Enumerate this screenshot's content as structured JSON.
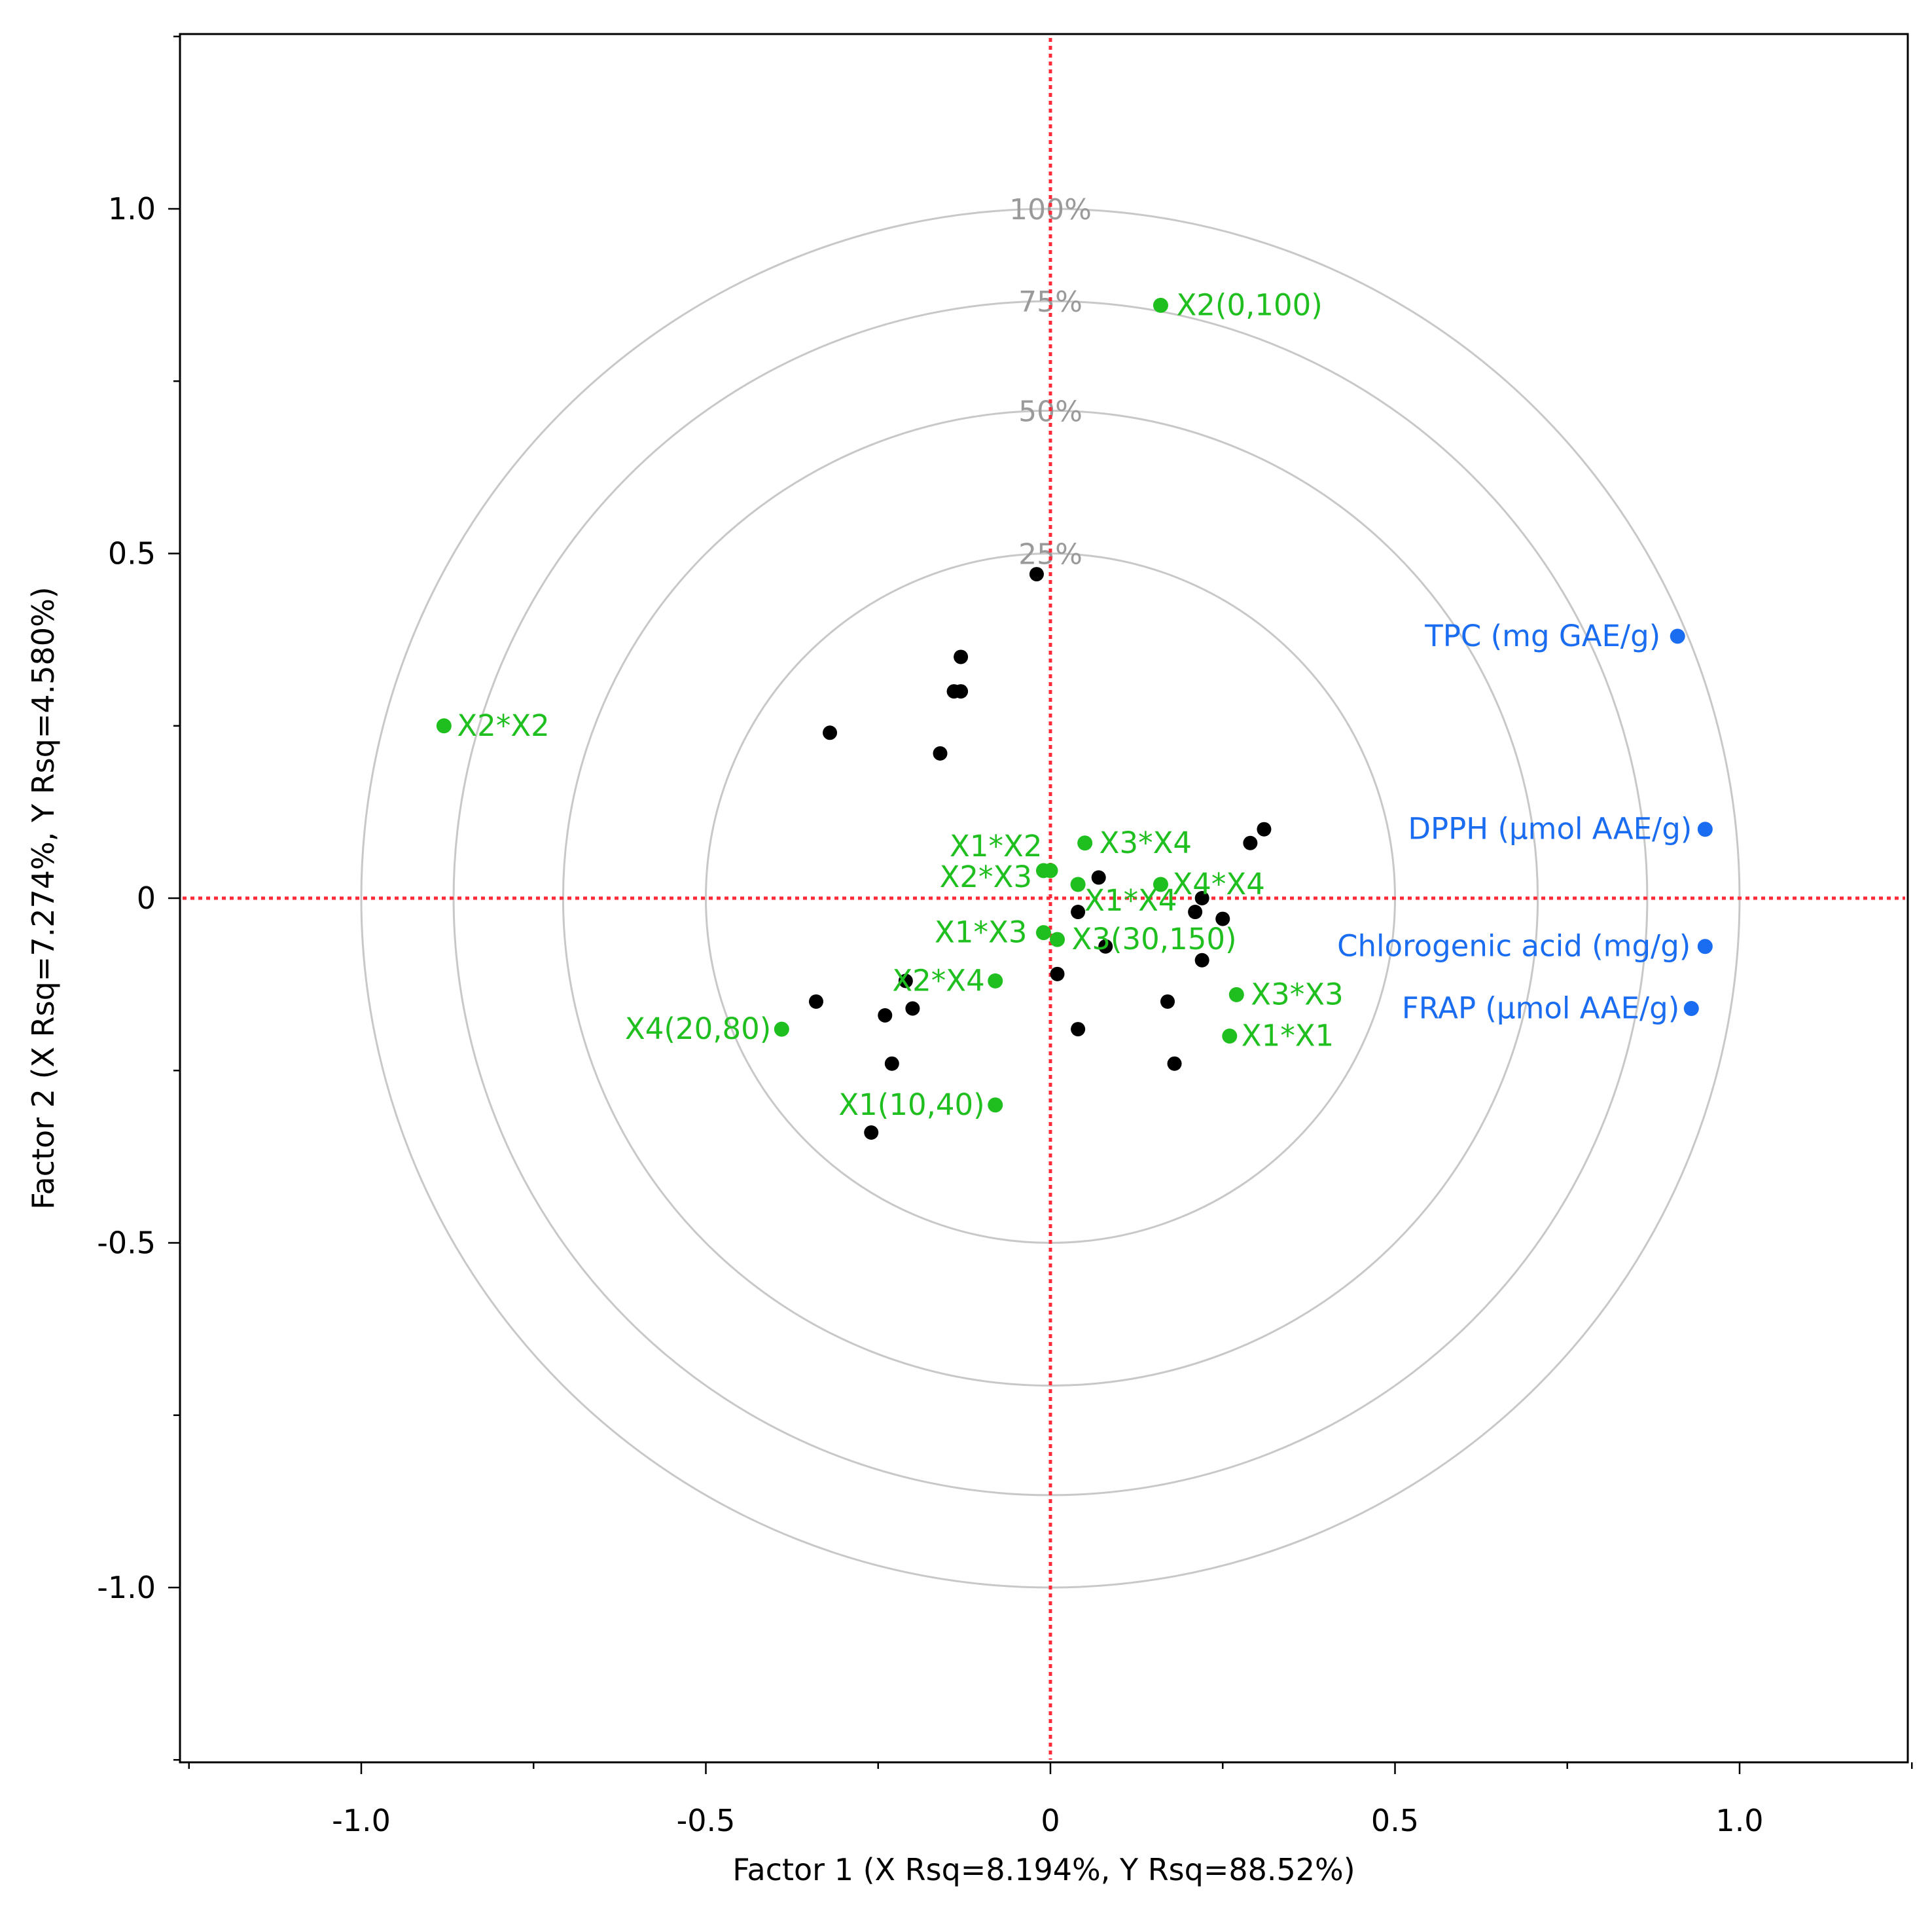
{
  "chart_data": {
    "type": "scatter",
    "title": "",
    "xlabel": "Factor 1 (X Rsq=8.194%, Y Rsq=88.52%)",
    "ylabel": "Factor 2 (X Rsq=7.274%, Y Rsq=4.580%)",
    "xlim": [
      -1.25,
      1.25
    ],
    "ylim": [
      -1.25,
      1.25
    ],
    "grid": false,
    "x_ticks": [
      {
        "value": -1.0,
        "label": "-1.0"
      },
      {
        "value": -0.5,
        "label": "-0.5"
      },
      {
        "value": 0,
        "label": "0"
      },
      {
        "value": 0.5,
        "label": "0.5"
      },
      {
        "value": 1.0,
        "label": "1.0"
      }
    ],
    "y_ticks": [
      {
        "value": 1.0,
        "label": "1.0"
      },
      {
        "value": 0.5,
        "label": "0.5"
      },
      {
        "value": 0,
        "label": "0"
      },
      {
        "value": -0.5,
        "label": "-0.5"
      },
      {
        "value": -1.0,
        "label": "-1.0"
      }
    ],
    "minor_tick_step": 0.25,
    "rings": [
      {
        "percent_explained": 25,
        "label": "25%"
      },
      {
        "percent_explained": 50,
        "label": "50%"
      },
      {
        "percent_explained": 75,
        "label": "75%"
      },
      {
        "percent_explained": 100,
        "label": "100%"
      }
    ],
    "reference_lines": {
      "x": 0,
      "y": 0,
      "color": "#ff2a3a",
      "style": "dotted"
    },
    "colors": {
      "x_terms": "#1fbf1f",
      "responses": "#1a6cf0",
      "observations": "#000000",
      "rings": "#c8c8c8"
    },
    "series": [
      {
        "group": "x_terms",
        "points": [
          {
            "x": 0.16,
            "y": 0.86,
            "label": "X2(0,100)"
          },
          {
            "x": -0.88,
            "y": 0.25,
            "label": "X2*X2"
          },
          {
            "x": -0.01,
            "y": 0.04,
            "label": "X1*X2"
          },
          {
            "x": 0.05,
            "y": 0.08,
            "label": "X3*X4"
          },
          {
            "x": 0.0,
            "y": 0.04,
            "label": "X2*X3"
          },
          {
            "x": 0.16,
            "y": 0.02,
            "label": "X4*X4"
          },
          {
            "x": 0.04,
            "y": 0.02,
            "label": "X1*X4"
          },
          {
            "x": -0.01,
            "y": -0.05,
            "label": "X1*X3"
          },
          {
            "x": 0.01,
            "y": -0.06,
            "label": "X3(30,150)"
          },
          {
            "x": -0.08,
            "y": -0.12,
            "label": "X2*X4"
          },
          {
            "x": 0.27,
            "y": -0.14,
            "label": "X3*X3"
          },
          {
            "x": 0.26,
            "y": -0.2,
            "label": "X1*X1"
          },
          {
            "x": -0.39,
            "y": -0.19,
            "label": "X4(20,80)"
          },
          {
            "x": -0.08,
            "y": -0.3,
            "label": "X1(10,40)"
          }
        ]
      },
      {
        "group": "responses",
        "points": [
          {
            "x": 0.91,
            "y": 0.38,
            "label": "TPC (mg GAE/g)"
          },
          {
            "x": 0.95,
            "y": 0.1,
            "label": "DPPH (µmol AAE/g)"
          },
          {
            "x": 0.95,
            "y": -0.07,
            "label": "Chlorogenic acid (mg/g)"
          },
          {
            "x": 0.93,
            "y": -0.16,
            "label": "FRAP (µmol AAE/g)"
          }
        ]
      },
      {
        "group": "observations",
        "points": [
          {
            "x": -0.02,
            "y": 0.47
          },
          {
            "x": -0.13,
            "y": 0.35
          },
          {
            "x": -0.14,
            "y": 0.3
          },
          {
            "x": -0.13,
            "y": 0.3
          },
          {
            "x": -0.32,
            "y": 0.24
          },
          {
            "x": -0.16,
            "y": 0.21
          },
          {
            "x": 0.31,
            "y": 0.1
          },
          {
            "x": 0.29,
            "y": 0.08
          },
          {
            "x": 0.07,
            "y": 0.03
          },
          {
            "x": 0.04,
            "y": -0.02
          },
          {
            "x": 0.21,
            "y": -0.02
          },
          {
            "x": 0.22,
            "y": 0.0
          },
          {
            "x": 0.25,
            "y": -0.03
          },
          {
            "x": 0.08,
            "y": -0.07
          },
          {
            "x": 0.22,
            "y": -0.09
          },
          {
            "x": 0.01,
            "y": -0.11
          },
          {
            "x": -0.21,
            "y": -0.12
          },
          {
            "x": -0.34,
            "y": -0.15
          },
          {
            "x": -0.2,
            "y": -0.16
          },
          {
            "x": -0.24,
            "y": -0.17
          },
          {
            "x": 0.17,
            "y": -0.15
          },
          {
            "x": 0.04,
            "y": -0.19
          },
          {
            "x": -0.23,
            "y": -0.24
          },
          {
            "x": 0.18,
            "y": -0.24
          },
          {
            "x": -0.26,
            "y": -0.34
          }
        ]
      }
    ]
  }
}
